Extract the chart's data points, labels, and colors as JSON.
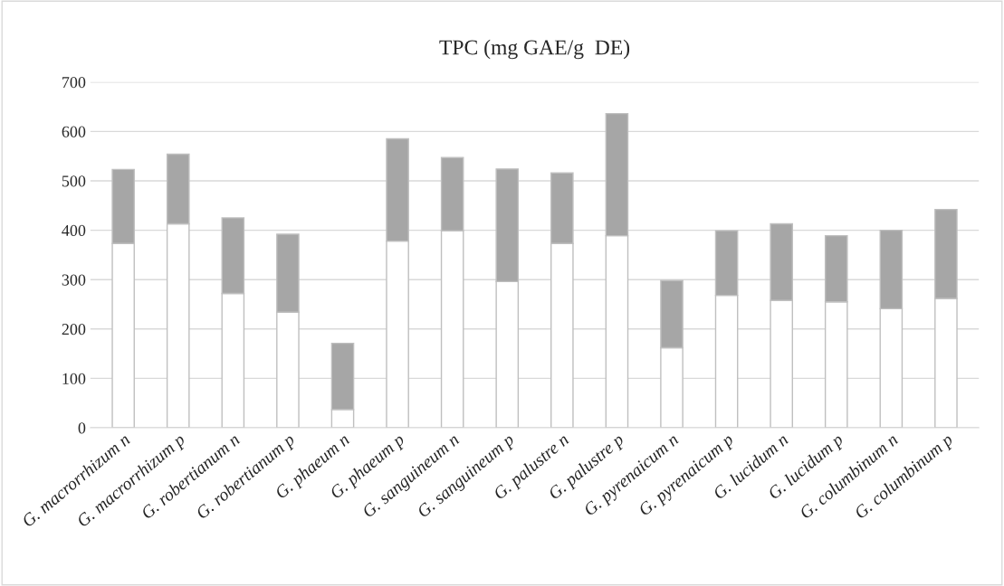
{
  "chart_data": {
    "type": "bar",
    "title": "TPC (mg GAE/g  DE)",
    "categories": [
      "G. macrorrhizum n",
      "G. macrorrhizum p",
      "G. robertianum n",
      "G. robertianum p",
      "G. phaeum n",
      "G. phaeum p",
      "G. sanguineum n",
      "G. sanguineum p",
      "G. palustre n",
      "G. palustre p",
      "G. pyrenaicum n",
      "G. pyrenaicum p",
      "G. lucidum n",
      "G. lucidum p",
      "G. columbinum n",
      "G. columbinum p"
    ],
    "stacked": true,
    "series": [
      {
        "color": "#ffffff",
        "values": [
          373,
          413,
          272,
          234,
          37,
          378,
          399,
          296,
          373,
          389,
          162,
          268,
          258,
          255,
          241,
          262
        ]
      },
      {
        "color": "#a6a6a6",
        "values": [
          150,
          141,
          153,
          158,
          134,
          207,
          148,
          228,
          143,
          247,
          136,
          131,
          155,
          134,
          159,
          180
        ]
      }
    ],
    "ylim": [
      0,
      700
    ],
    "yticks": [
      0,
      100,
      200,
      300,
      400,
      500,
      600,
      700
    ],
    "grid": "y",
    "legend": false
  }
}
